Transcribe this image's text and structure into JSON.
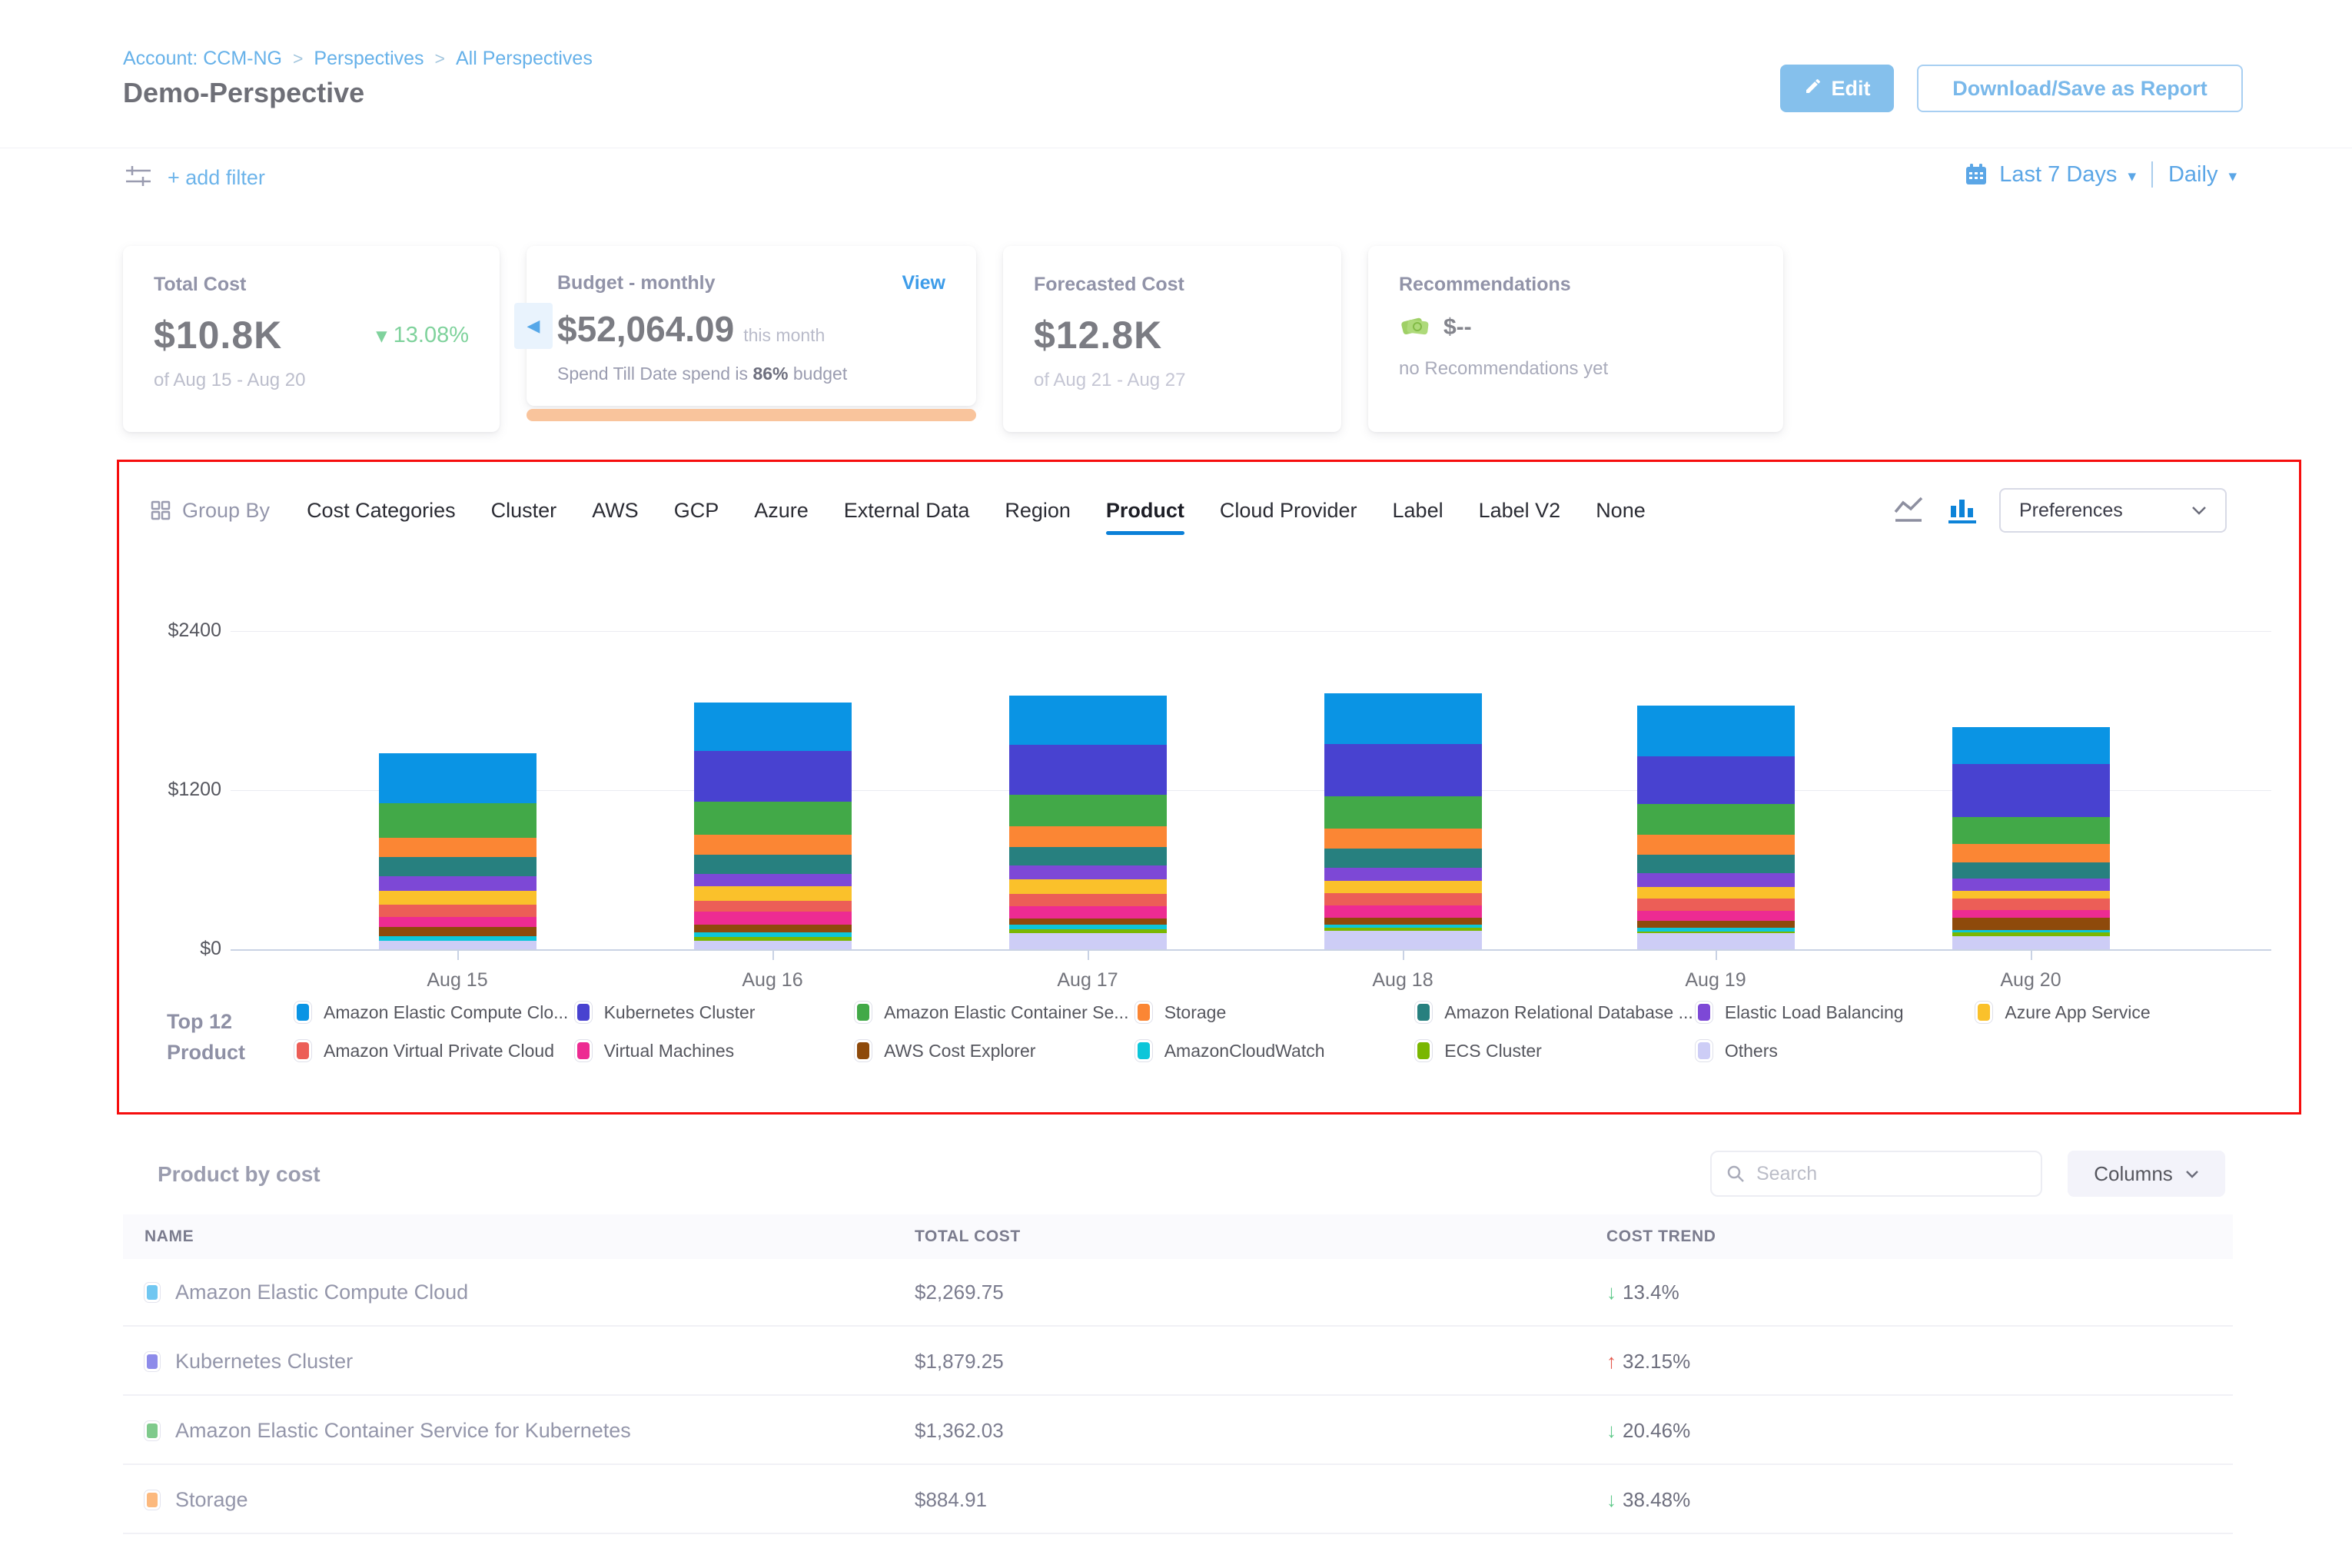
{
  "header": {
    "breadcrumb": {
      "items": [
        "Account: CCM-NG",
        "Perspectives",
        "All Perspectives"
      ],
      "separator": ">"
    },
    "title": "Demo-Perspective",
    "edit_label": "Edit",
    "download_label": "Download/Save as Report"
  },
  "filter_bar": {
    "add_filter_label": "+ add filter",
    "date_range": "Last 7 Days",
    "granularity": "Daily"
  },
  "cards": {
    "total_cost": {
      "label": "Total Cost",
      "value": "$10.8K",
      "delta_dir": "down",
      "delta": "13.08%",
      "period": "of Aug 15 - Aug 20"
    },
    "budget": {
      "label": "Budget - monthly",
      "view_label": "View",
      "value": "$52,064.09",
      "value_suffix": "this month",
      "spend_prefix": "Spend Till Date spend is",
      "spend_pct": "86%",
      "spend_suffix": "budget"
    },
    "forecast": {
      "label": "Forecasted Cost",
      "value": "$12.8K",
      "period": "of Aug 21 - Aug 27"
    },
    "recommendations": {
      "label": "Recommendations",
      "value": "$--",
      "note": "no Recommendations yet"
    }
  },
  "group_by": {
    "label": "Group By",
    "tabs": [
      "Cost Categories",
      "Cluster",
      "AWS",
      "GCP",
      "Azure",
      "External Data",
      "Region",
      "Product",
      "Cloud Provider",
      "Label",
      "Label V2",
      "None"
    ],
    "active_tab": "Product",
    "preferences_label": "Preferences"
  },
  "chart_data": {
    "type": "bar",
    "stacked": true,
    "categories": [
      "Aug 15",
      "Aug 16",
      "Aug 17",
      "Aug 18",
      "Aug 19",
      "Aug 20"
    ],
    "ylim": [
      0,
      2400
    ],
    "yticks": [
      {
        "value": 0,
        "label": "$0"
      },
      {
        "value": 1200,
        "label": "$1200"
      },
      {
        "value": 2400,
        "label": "$2400"
      }
    ],
    "grid": true,
    "legend_position": "bottom",
    "legend_title_line1": "Top 12",
    "legend_title_line2": "Product",
    "series": [
      {
        "label": "Amazon Elastic Compute Clo...",
        "color": "#0a94e4",
        "values": [
          375,
          365,
          370,
          385,
          385,
          280
        ]
      },
      {
        "label": "Kubernetes Cluster",
        "color": "#4842d0",
        "values": [
          0,
          385,
          375,
          390,
          360,
          400
        ]
      },
      {
        "label": "Amazon Elastic Container Se...",
        "color": "#42a948",
        "values": [
          260,
          250,
          240,
          245,
          230,
          200
        ]
      },
      {
        "label": "Storage",
        "color": "#fb8634",
        "values": [
          150,
          150,
          155,
          150,
          150,
          140
        ]
      },
      {
        "label": "Amazon Relational Database ...",
        "color": "#27807f",
        "values": [
          140,
          145,
          140,
          145,
          140,
          120
        ]
      },
      {
        "label": "Elastic Load Balancing",
        "color": "#7d48d6",
        "values": [
          110,
          90,
          105,
          100,
          105,
          95
        ]
      },
      {
        "label": "Azure App Service",
        "color": "#fac12b",
        "values": [
          105,
          110,
          108,
          95,
          85,
          55
        ]
      },
      {
        "label": "Amazon Virtual Private Cloud",
        "color": "#ec5e57",
        "values": [
          93,
          82,
          94,
          90,
          95,
          90
        ]
      },
      {
        "label": "Virtual Machines",
        "color": "#ed2b92",
        "values": [
          80,
          98,
          96,
          90,
          75,
          55
        ]
      },
      {
        "label": "AWS Cost Explorer",
        "color": "#8e4a0b",
        "values": [
          65,
          58,
          45,
          55,
          55,
          95
        ]
      },
      {
        "label": "AmazonCloudWatch",
        "color": "#0dc6d9",
        "values": [
          35,
          35,
          32,
          25,
          25,
          20
        ]
      },
      {
        "label": "ECS Cluster",
        "color": "#7ab701",
        "values": [
          0,
          29,
          32,
          20,
          15,
          25
        ]
      },
      {
        "label": "Others",
        "color": "#cdcdf6",
        "values": [
          65,
          65,
          120,
          140,
          120,
          100
        ]
      }
    ]
  },
  "table": {
    "title": "Product by cost",
    "search_placeholder": "Search",
    "columns_label": "Columns",
    "headers": [
      "NAME",
      "TOTAL COST",
      "COST TREND"
    ],
    "rows": [
      {
        "name": "Amazon Elastic Compute Cloud",
        "swatch": "#70c7f1",
        "total": "$2,269.75",
        "trend": "13.4%",
        "trend_dir": "down"
      },
      {
        "name": "Kubernetes Cluster",
        "swatch": "#8d8bea",
        "total": "$1,879.25",
        "trend": "32.15%",
        "trend_dir": "up"
      },
      {
        "name": "Amazon Elastic Container Service for Kubernetes",
        "swatch": "#7fca8c",
        "total": "$1,362.03",
        "trend": "20.46%",
        "trend_dir": "down"
      },
      {
        "name": "Storage",
        "swatch": "#fcb97e",
        "total": "$884.91",
        "trend": "38.48%",
        "trend_dir": "down"
      }
    ]
  },
  "colors": {
    "accent_blue": "#0b80d8",
    "link_blue": "#66b1e9",
    "trend_up_red": "#e4574b",
    "trend_down_green": "#5fc98a",
    "budget_bar_orange": "#f9c49c",
    "highlight_red": "#f60d0d"
  }
}
